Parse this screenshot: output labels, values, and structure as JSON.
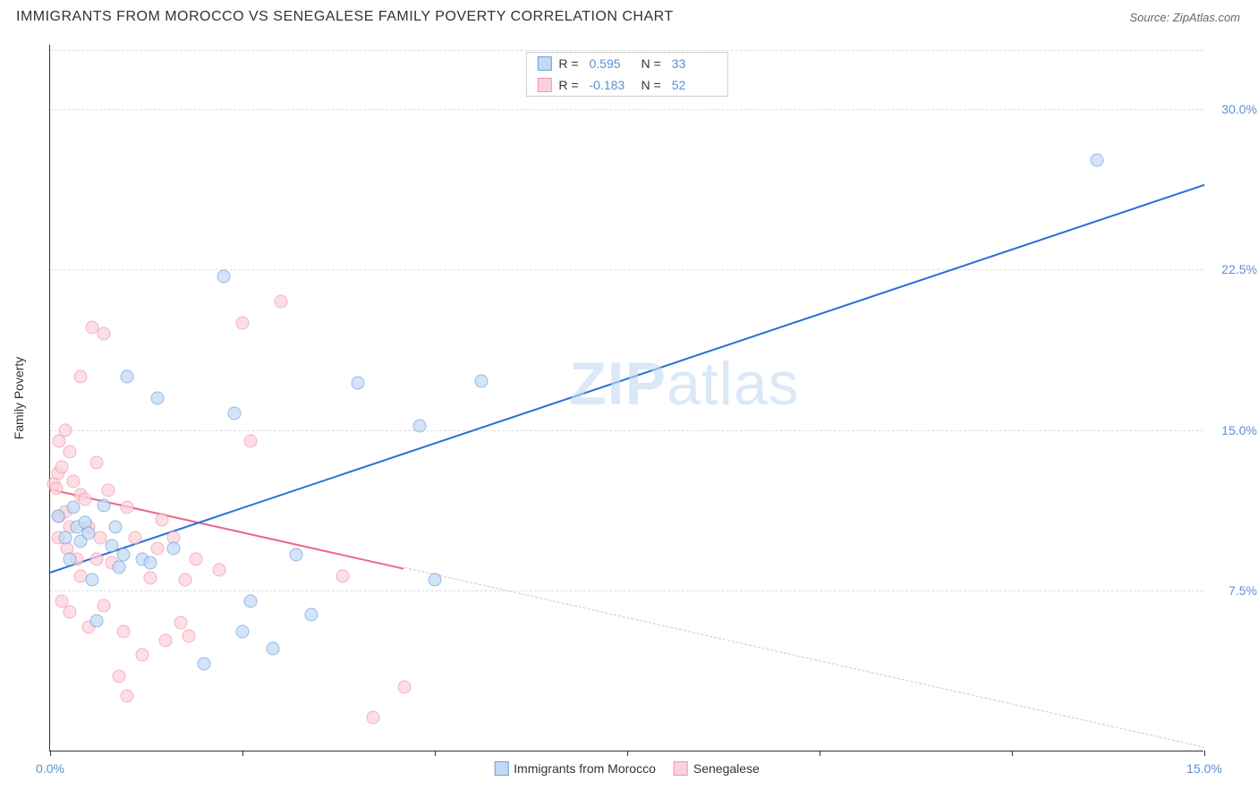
{
  "title": "IMMIGRANTS FROM MOROCCO VS SENEGALESE FAMILY POVERTY CORRELATION CHART",
  "source_label": "Source: ZipAtlas.com",
  "watermark": {
    "bold": "ZIP",
    "rest": "atlas"
  },
  "chart": {
    "type": "scatter",
    "y_axis_title": "Family Poverty",
    "xlim": [
      0,
      15
    ],
    "ylim": [
      0,
      33
    ],
    "x_ticks": [
      0,
      2.5,
      5,
      7.5,
      10,
      12.5,
      15
    ],
    "x_tick_labels": {
      "0": "0.0%",
      "15": "15.0%"
    },
    "y_ticks": [
      7.5,
      15,
      22.5,
      30
    ],
    "y_tick_labels": {
      "7.5": "7.5%",
      "15": "15.0%",
      "22.5": "22.5%",
      "30": "30.0%"
    },
    "grid_color": "#dddddd",
    "background_color": "#ffffff",
    "marker_radius": 7.5,
    "marker_opacity": 0.72,
    "series": {
      "blue": {
        "label": "Immigrants from Morocco",
        "fill": "#c3daf4",
        "stroke": "#6a9fe0",
        "line_color": "#2a6fd6",
        "R_label": "R =",
        "R_value": "0.595",
        "N_label": "N =",
        "N_value": "33",
        "points": [
          [
            0.1,
            11.0
          ],
          [
            0.2,
            10.0
          ],
          [
            0.25,
            9.0
          ],
          [
            0.3,
            11.4
          ],
          [
            0.35,
            10.5
          ],
          [
            0.4,
            9.8
          ],
          [
            0.45,
            10.7
          ],
          [
            0.5,
            10.2
          ],
          [
            0.55,
            8.0
          ],
          [
            0.6,
            6.1
          ],
          [
            0.7,
            11.5
          ],
          [
            0.8,
            9.6
          ],
          [
            0.85,
            10.5
          ],
          [
            0.9,
            8.6
          ],
          [
            0.95,
            9.2
          ],
          [
            1.0,
            17.5
          ],
          [
            1.2,
            9.0
          ],
          [
            1.3,
            8.8
          ],
          [
            1.4,
            16.5
          ],
          [
            1.6,
            9.5
          ],
          [
            2.0,
            4.1
          ],
          [
            2.25,
            22.2
          ],
          [
            2.4,
            15.8
          ],
          [
            2.5,
            5.6
          ],
          [
            2.6,
            7.0
          ],
          [
            2.9,
            4.8
          ],
          [
            3.2,
            9.2
          ],
          [
            3.4,
            6.4
          ],
          [
            4.0,
            17.2
          ],
          [
            4.8,
            15.2
          ],
          [
            5.0,
            8.0
          ],
          [
            5.6,
            17.3
          ],
          [
            13.6,
            27.6
          ]
        ],
        "trend": {
          "x1": 0,
          "y1": 8.4,
          "x2": 15,
          "y2": 26.5,
          "solid_until_x": 15
        }
      },
      "pink": {
        "label": "Senegalese",
        "fill": "#fbd2db",
        "stroke": "#f095aa",
        "line_color": "#e96b8a",
        "R_label": "R =",
        "R_value": "-0.183",
        "N_label": "N =",
        "N_value": "52",
        "points": [
          [
            0.05,
            12.5
          ],
          [
            0.08,
            12.3
          ],
          [
            0.1,
            13.0
          ],
          [
            0.1,
            10.0
          ],
          [
            0.12,
            14.5
          ],
          [
            0.12,
            11.0
          ],
          [
            0.15,
            13.3
          ],
          [
            0.15,
            7.0
          ],
          [
            0.2,
            15.0
          ],
          [
            0.2,
            11.2
          ],
          [
            0.22,
            9.5
          ],
          [
            0.25,
            14.0
          ],
          [
            0.25,
            10.5
          ],
          [
            0.25,
            6.5
          ],
          [
            0.3,
            12.6
          ],
          [
            0.35,
            9.0
          ],
          [
            0.4,
            17.5
          ],
          [
            0.4,
            12.0
          ],
          [
            0.4,
            8.2
          ],
          [
            0.45,
            11.8
          ],
          [
            0.5,
            10.5
          ],
          [
            0.5,
            5.8
          ],
          [
            0.55,
            19.8
          ],
          [
            0.6,
            13.5
          ],
          [
            0.6,
            9.0
          ],
          [
            0.65,
            10.0
          ],
          [
            0.7,
            19.5
          ],
          [
            0.7,
            6.8
          ],
          [
            0.75,
            12.2
          ],
          [
            0.8,
            8.8
          ],
          [
            0.9,
            3.5
          ],
          [
            0.95,
            5.6
          ],
          [
            1.0,
            11.4
          ],
          [
            1.0,
            2.6
          ],
          [
            1.1,
            10.0
          ],
          [
            1.2,
            4.5
          ],
          [
            1.3,
            8.1
          ],
          [
            1.4,
            9.5
          ],
          [
            1.45,
            10.8
          ],
          [
            1.5,
            5.2
          ],
          [
            1.6,
            10.0
          ],
          [
            1.7,
            6.0
          ],
          [
            1.75,
            8.0
          ],
          [
            1.8,
            5.4
          ],
          [
            1.9,
            9.0
          ],
          [
            2.2,
            8.5
          ],
          [
            2.5,
            20.0
          ],
          [
            2.6,
            14.5
          ],
          [
            3.0,
            21.0
          ],
          [
            3.8,
            8.2
          ],
          [
            4.2,
            1.6
          ],
          [
            4.6,
            3.0
          ]
        ],
        "trend": {
          "x1": 0,
          "y1": 12.3,
          "x2": 15,
          "y2": 0.2,
          "solid_until_x": 4.6,
          "dashed_color": "#f4b5c3"
        }
      }
    }
  }
}
